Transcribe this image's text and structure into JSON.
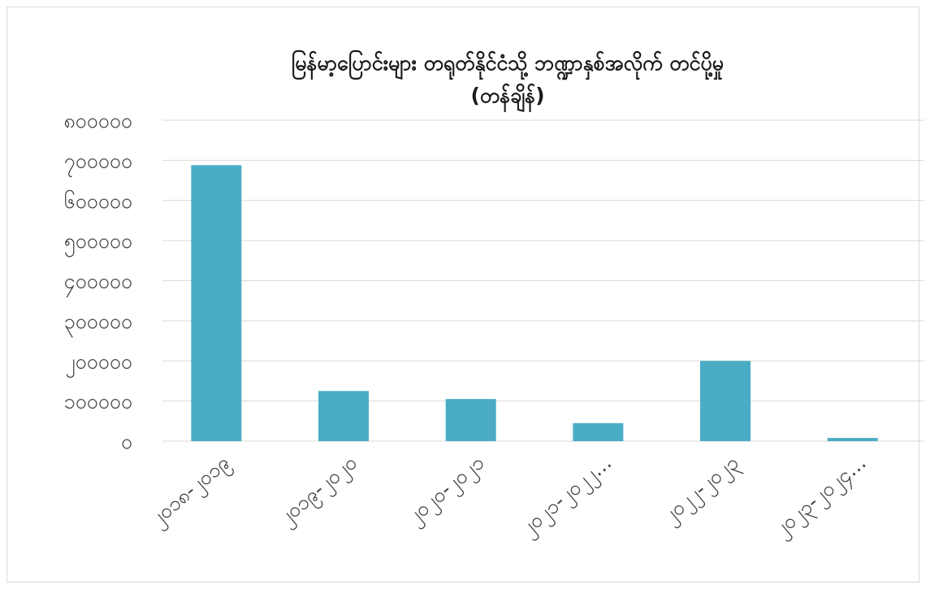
{
  "chart_data": {
    "type": "bar",
    "title": "မြန်မာ့ပြောင်းများ တရုတ်နိုင်ငံသို့ ဘဏ္ဍာနှစ်အလိုက် တင်ပို့မှု",
    "subtitle": "(တန်ချိန်)",
    "xlabel": "",
    "ylabel": "",
    "categories": [
      "၂၀၁၈-၂၀၁၉",
      "၂၀၁၉-၂၀၂၀",
      "၂၀၂၀-၂၀၂၁",
      "၂၀၂၁-၂၀၂၂...",
      "၂၀၂၂-၂၀၂၃",
      "၂၀၂၃-၂၀၂၄..."
    ],
    "values": [
      688000,
      125000,
      105000,
      45000,
      200000,
      8000
    ],
    "ylim": [
      0,
      800000
    ],
    "y_ticks": [
      0,
      100000,
      200000,
      300000,
      400000,
      500000,
      600000,
      700000,
      800000
    ],
    "y_tick_labels": [
      "၀",
      "၁၀၀၀၀၀",
      "၂၀၀၀၀၀",
      "၃၀၀၀၀၀",
      "၄၀၀၀၀၀",
      "၅၀၀၀၀၀",
      "၆၀၀၀၀၀",
      "၇၀၀၀၀၀",
      "၈၀၀၀၀၀"
    ],
    "grid": true,
    "legend": "none",
    "bar_color": "#4bacc6",
    "grid_color": "#d9d9d9"
  }
}
